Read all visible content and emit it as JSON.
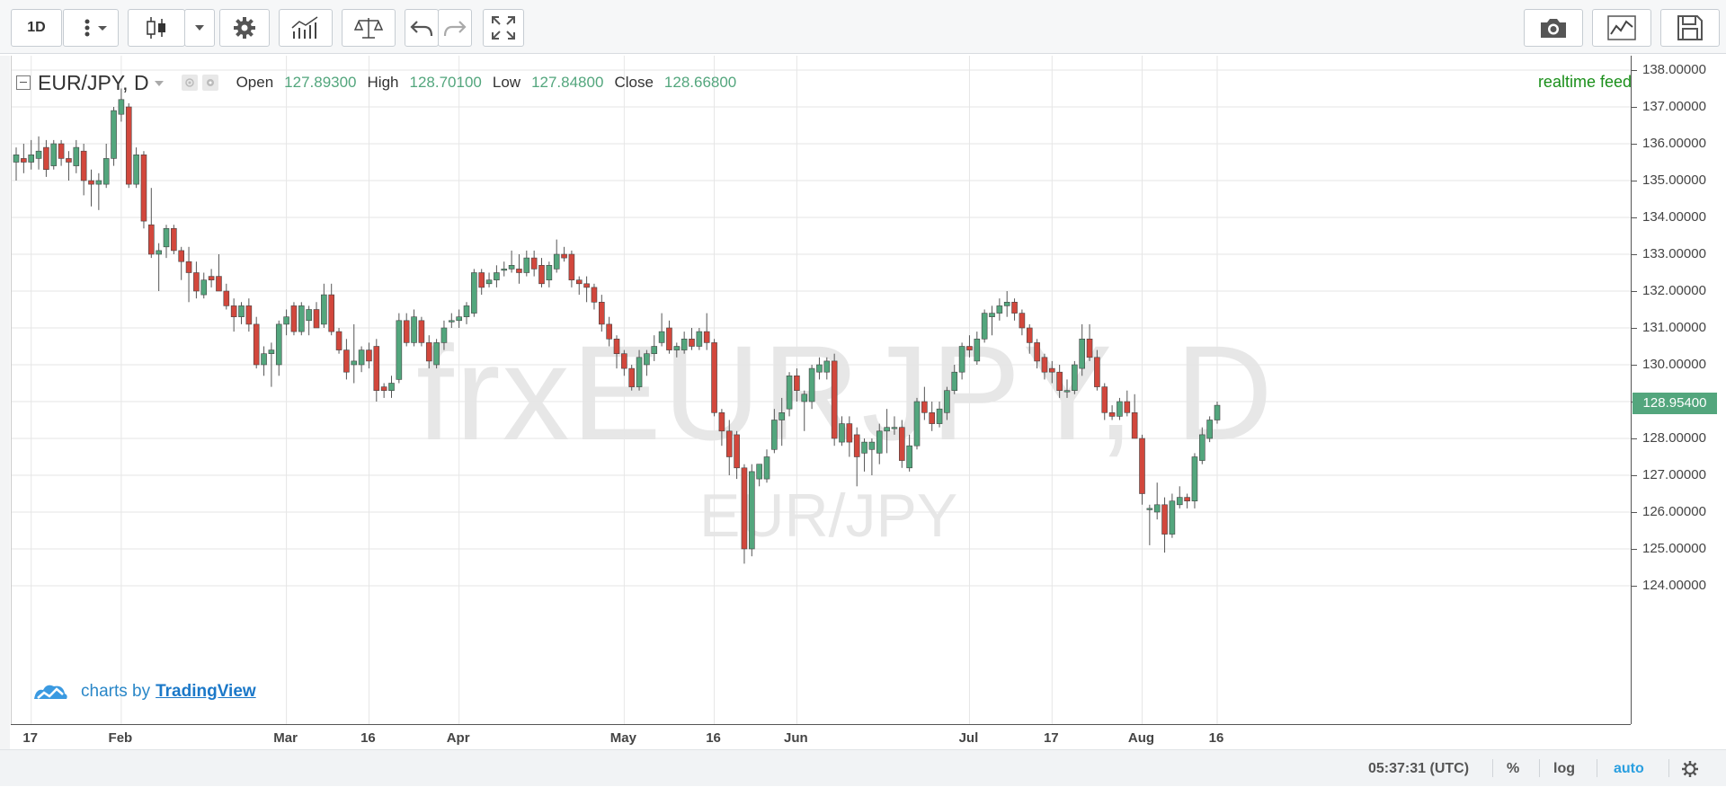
{
  "toolbar": {
    "interval": "1D",
    "icons": [
      "more-vertical-icon",
      "chevron-down-icon",
      "candlestick-icon",
      "chevron-down-icon",
      "gear-icon",
      "indicators-icon",
      "compare-scales-icon",
      "undo-icon",
      "redo-icon",
      "fullscreen-icon",
      "camera-icon",
      "chart-type-icon",
      "save-icon"
    ]
  },
  "legend": {
    "symbol": "EUR/JPY, D",
    "open_label": "Open",
    "open_value": "127.89300",
    "high_label": "High",
    "high_value": "128.70100",
    "low_label": "Low",
    "low_value": "127.84800",
    "close_label": "Close",
    "close_value": "128.66800"
  },
  "realtime_label": "realtime feed",
  "watermark": {
    "primary": "frxEURJPY, D",
    "secondary": "EUR/JPY"
  },
  "branding": {
    "prefix": "charts by",
    "link": "TradingView"
  },
  "status_bar": {
    "clock": "05:37:31 (UTC)",
    "percent": "%",
    "log": "log",
    "auto": "auto"
  },
  "colors": {
    "up": "#53a67d",
    "down": "#d2473c",
    "wick": "#555555",
    "grid": "#e6e6e6",
    "auto_active": "#2a9fe0"
  },
  "chart_data": {
    "type": "candlestick",
    "symbol": "EUR/JPY",
    "interval": "D",
    "y_range": [
      123.8,
      138.3
    ],
    "y_ticks": [
      "138.00000",
      "137.00000",
      "136.00000",
      "135.00000",
      "134.00000",
      "133.00000",
      "132.00000",
      "131.00000",
      "130.00000",
      "129.00000",
      "128.00000",
      "127.00000",
      "126.00000",
      "125.00000",
      "124.00000"
    ],
    "x_ticks": [
      "17",
      "Feb",
      "Mar",
      "16",
      "Apr",
      "May",
      "16",
      "Jun",
      "Jul",
      "17",
      "Aug",
      "16"
    ],
    "last_price": "128.95400",
    "candles": [
      {
        "o": 135.5,
        "h": 135.9,
        "l": 135.0,
        "c": 135.7
      },
      {
        "o": 135.6,
        "h": 136.0,
        "l": 135.2,
        "c": 135.5
      },
      {
        "o": 135.5,
        "h": 136.1,
        "l": 135.3,
        "c": 135.7
      },
      {
        "o": 135.6,
        "h": 136.2,
        "l": 135.3,
        "c": 135.8
      },
      {
        "o": 135.9,
        "h": 136.1,
        "l": 135.1,
        "c": 135.3
      },
      {
        "o": 135.4,
        "h": 136.1,
        "l": 135.3,
        "c": 136.0
      },
      {
        "o": 136.0,
        "h": 136.1,
        "l": 135.4,
        "c": 135.6
      },
      {
        "o": 135.6,
        "h": 135.8,
        "l": 135.0,
        "c": 135.5
      },
      {
        "o": 135.4,
        "h": 136.1,
        "l": 135.2,
        "c": 135.9
      },
      {
        "o": 135.8,
        "h": 136.0,
        "l": 134.6,
        "c": 135.0
      },
      {
        "o": 135.0,
        "h": 135.3,
        "l": 134.3,
        "c": 134.9
      },
      {
        "o": 134.9,
        "h": 135.2,
        "l": 134.2,
        "c": 135.0
      },
      {
        "o": 134.9,
        "h": 136.0,
        "l": 134.8,
        "c": 135.6
      },
      {
        "o": 135.6,
        "h": 137.0,
        "l": 135.4,
        "c": 136.9
      },
      {
        "o": 136.8,
        "h": 137.5,
        "l": 136.6,
        "c": 137.2
      },
      {
        "o": 137.0,
        "h": 137.1,
        "l": 134.8,
        "c": 134.9
      },
      {
        "o": 134.9,
        "h": 135.9,
        "l": 134.8,
        "c": 135.7
      },
      {
        "o": 135.7,
        "h": 135.8,
        "l": 133.7,
        "c": 133.9
      },
      {
        "o": 133.8,
        "h": 134.8,
        "l": 132.9,
        "c": 133.0
      },
      {
        "o": 133.0,
        "h": 133.3,
        "l": 132.0,
        "c": 133.1
      },
      {
        "o": 133.2,
        "h": 133.8,
        "l": 132.9,
        "c": 133.7
      },
      {
        "o": 133.7,
        "h": 133.8,
        "l": 133.0,
        "c": 133.1
      },
      {
        "o": 133.1,
        "h": 133.2,
        "l": 132.3,
        "c": 132.8
      },
      {
        "o": 132.8,
        "h": 133.2,
        "l": 131.7,
        "c": 132.5
      },
      {
        "o": 132.5,
        "h": 132.8,
        "l": 131.8,
        "c": 132.0
      },
      {
        "o": 131.9,
        "h": 132.5,
        "l": 131.8,
        "c": 132.3
      },
      {
        "o": 132.4,
        "h": 132.6,
        "l": 132.1,
        "c": 132.3
      },
      {
        "o": 132.4,
        "h": 133.0,
        "l": 132.0,
        "c": 132.0
      },
      {
        "o": 132.0,
        "h": 132.2,
        "l": 131.5,
        "c": 131.6
      },
      {
        "o": 131.6,
        "h": 131.8,
        "l": 130.9,
        "c": 131.3
      },
      {
        "o": 131.3,
        "h": 131.7,
        "l": 131.1,
        "c": 131.6
      },
      {
        "o": 131.6,
        "h": 131.8,
        "l": 130.9,
        "c": 131.1
      },
      {
        "o": 131.1,
        "h": 131.3,
        "l": 129.9,
        "c": 130.0
      },
      {
        "o": 130.0,
        "h": 130.5,
        "l": 129.7,
        "c": 130.3
      },
      {
        "o": 130.3,
        "h": 130.6,
        "l": 129.4,
        "c": 130.4
      },
      {
        "o": 130.0,
        "h": 131.2,
        "l": 129.7,
        "c": 131.1
      },
      {
        "o": 131.1,
        "h": 131.5,
        "l": 130.8,
        "c": 131.3
      },
      {
        "o": 131.6,
        "h": 131.7,
        "l": 130.8,
        "c": 130.9
      },
      {
        "o": 130.9,
        "h": 131.7,
        "l": 130.8,
        "c": 131.6
      },
      {
        "o": 131.2,
        "h": 131.6,
        "l": 130.8,
        "c": 131.5
      },
      {
        "o": 131.5,
        "h": 131.7,
        "l": 131.0,
        "c": 131.0
      },
      {
        "o": 131.1,
        "h": 132.2,
        "l": 131.0,
        "c": 131.9
      },
      {
        "o": 131.9,
        "h": 132.2,
        "l": 130.8,
        "c": 130.9
      },
      {
        "o": 130.9,
        "h": 131.0,
        "l": 130.3,
        "c": 130.4
      },
      {
        "o": 130.4,
        "h": 130.7,
        "l": 129.6,
        "c": 129.8
      },
      {
        "o": 130.0,
        "h": 131.1,
        "l": 129.5,
        "c": 130.1
      },
      {
        "o": 130.0,
        "h": 130.5,
        "l": 129.8,
        "c": 130.4
      },
      {
        "o": 130.4,
        "h": 130.6,
        "l": 129.9,
        "c": 130.1
      },
      {
        "o": 130.5,
        "h": 130.7,
        "l": 129.0,
        "c": 129.3
      },
      {
        "o": 129.4,
        "h": 129.5,
        "l": 129.1,
        "c": 129.3
      },
      {
        "o": 129.3,
        "h": 129.7,
        "l": 129.1,
        "c": 129.5
      },
      {
        "o": 129.6,
        "h": 131.4,
        "l": 129.5,
        "c": 131.2
      },
      {
        "o": 131.2,
        "h": 131.4,
        "l": 130.5,
        "c": 130.6
      },
      {
        "o": 130.6,
        "h": 131.5,
        "l": 130.5,
        "c": 131.3
      },
      {
        "o": 131.2,
        "h": 131.3,
        "l": 130.5,
        "c": 130.6
      },
      {
        "o": 130.6,
        "h": 130.8,
        "l": 129.9,
        "c": 130.1
      },
      {
        "o": 130.0,
        "h": 130.7,
        "l": 129.9,
        "c": 130.6
      },
      {
        "o": 130.6,
        "h": 131.2,
        "l": 130.4,
        "c": 131.0
      },
      {
        "o": 131.2,
        "h": 131.4,
        "l": 131.0,
        "c": 131.2
      },
      {
        "o": 131.2,
        "h": 131.5,
        "l": 131.0,
        "c": 131.3
      },
      {
        "o": 131.3,
        "h": 131.7,
        "l": 131.1,
        "c": 131.6
      },
      {
        "o": 131.4,
        "h": 132.6,
        "l": 131.3,
        "c": 132.5
      },
      {
        "o": 132.5,
        "h": 132.6,
        "l": 131.9,
        "c": 132.1
      },
      {
        "o": 132.2,
        "h": 132.5,
        "l": 132.1,
        "c": 132.3
      },
      {
        "o": 132.3,
        "h": 132.7,
        "l": 132.1,
        "c": 132.5
      },
      {
        "o": 132.6,
        "h": 132.8,
        "l": 132.4,
        "c": 132.6
      },
      {
        "o": 132.6,
        "h": 133.1,
        "l": 132.5,
        "c": 132.7
      },
      {
        "o": 132.6,
        "h": 133.0,
        "l": 132.2,
        "c": 132.5
      },
      {
        "o": 132.5,
        "h": 133.1,
        "l": 132.4,
        "c": 132.9
      },
      {
        "o": 132.9,
        "h": 133.1,
        "l": 132.4,
        "c": 132.6
      },
      {
        "o": 132.7,
        "h": 132.9,
        "l": 132.1,
        "c": 132.2
      },
      {
        "o": 132.3,
        "h": 132.8,
        "l": 132.1,
        "c": 132.7
      },
      {
        "o": 132.6,
        "h": 133.4,
        "l": 132.5,
        "c": 133.0
      },
      {
        "o": 133.0,
        "h": 133.2,
        "l": 132.8,
        "c": 132.9
      },
      {
        "o": 133.0,
        "h": 133.1,
        "l": 132.1,
        "c": 132.3
      },
      {
        "o": 132.3,
        "h": 132.4,
        "l": 131.9,
        "c": 132.2
      },
      {
        "o": 132.2,
        "h": 132.4,
        "l": 131.7,
        "c": 132.1
      },
      {
        "o": 132.1,
        "h": 132.2,
        "l": 131.5,
        "c": 131.7
      },
      {
        "o": 131.7,
        "h": 131.9,
        "l": 130.9,
        "c": 131.1
      },
      {
        "o": 131.1,
        "h": 131.3,
        "l": 130.5,
        "c": 130.7
      },
      {
        "o": 130.7,
        "h": 130.8,
        "l": 129.9,
        "c": 130.3
      },
      {
        "o": 130.3,
        "h": 130.4,
        "l": 129.7,
        "c": 129.9
      },
      {
        "o": 129.9,
        "h": 130.0,
        "l": 129.3,
        "c": 129.4
      },
      {
        "o": 129.4,
        "h": 130.4,
        "l": 129.3,
        "c": 130.2
      },
      {
        "o": 130.0,
        "h": 130.4,
        "l": 129.7,
        "c": 130.3
      },
      {
        "o": 130.3,
        "h": 130.8,
        "l": 130.1,
        "c": 130.5
      },
      {
        "o": 130.6,
        "h": 131.4,
        "l": 130.5,
        "c": 130.9
      },
      {
        "o": 131.0,
        "h": 131.2,
        "l": 130.3,
        "c": 130.4
      },
      {
        "o": 130.4,
        "h": 130.6,
        "l": 130.2,
        "c": 130.5
      },
      {
        "o": 130.4,
        "h": 130.9,
        "l": 130.3,
        "c": 130.7
      },
      {
        "o": 130.7,
        "h": 131.0,
        "l": 130.4,
        "c": 130.5
      },
      {
        "o": 130.5,
        "h": 131.0,
        "l": 130.4,
        "c": 130.9
      },
      {
        "o": 130.9,
        "h": 131.4,
        "l": 130.4,
        "c": 130.6
      },
      {
        "o": 130.6,
        "h": 130.7,
        "l": 128.6,
        "c": 128.7
      },
      {
        "o": 128.7,
        "h": 128.8,
        "l": 127.8,
        "c": 128.2
      },
      {
        "o": 128.2,
        "h": 128.5,
        "l": 127.0,
        "c": 127.5
      },
      {
        "o": 128.1,
        "h": 128.2,
        "l": 126.9,
        "c": 127.2
      },
      {
        "o": 127.2,
        "h": 127.3,
        "l": 124.6,
        "c": 125.0
      },
      {
        "o": 125.0,
        "h": 127.3,
        "l": 124.8,
        "c": 127.1
      },
      {
        "o": 126.9,
        "h": 127.3,
        "l": 126.7,
        "c": 127.3
      },
      {
        "o": 126.9,
        "h": 127.7,
        "l": 126.8,
        "c": 127.5
      },
      {
        "o": 127.7,
        "h": 128.8,
        "l": 127.6,
        "c": 128.5
      },
      {
        "o": 128.5,
        "h": 129.1,
        "l": 127.8,
        "c": 128.7
      },
      {
        "o": 128.8,
        "h": 129.8,
        "l": 128.6,
        "c": 129.7
      },
      {
        "o": 129.7,
        "h": 129.9,
        "l": 129.0,
        "c": 129.3
      },
      {
        "o": 129.0,
        "h": 129.3,
        "l": 128.2,
        "c": 129.2
      },
      {
        "o": 129.0,
        "h": 130.0,
        "l": 128.8,
        "c": 129.9
      },
      {
        "o": 129.8,
        "h": 130.2,
        "l": 129.6,
        "c": 130.0
      },
      {
        "o": 129.8,
        "h": 130.2,
        "l": 129.6,
        "c": 130.1
      },
      {
        "o": 130.1,
        "h": 130.3,
        "l": 127.8,
        "c": 128.0
      },
      {
        "o": 127.9,
        "h": 128.6,
        "l": 127.8,
        "c": 128.4
      },
      {
        "o": 128.4,
        "h": 128.6,
        "l": 127.5,
        "c": 127.9
      },
      {
        "o": 128.1,
        "h": 128.3,
        "l": 126.7,
        "c": 127.5
      },
      {
        "o": 127.6,
        "h": 128.0,
        "l": 127.1,
        "c": 127.9
      },
      {
        "o": 127.7,
        "h": 128.0,
        "l": 127.0,
        "c": 127.9
      },
      {
        "o": 127.6,
        "h": 128.4,
        "l": 127.3,
        "c": 128.2
      },
      {
        "o": 128.2,
        "h": 128.8,
        "l": 127.6,
        "c": 128.3
      },
      {
        "o": 128.3,
        "h": 128.6,
        "l": 128.1,
        "c": 128.3
      },
      {
        "o": 128.3,
        "h": 128.5,
        "l": 127.2,
        "c": 127.4
      },
      {
        "o": 127.2,
        "h": 128.1,
        "l": 127.1,
        "c": 127.8
      },
      {
        "o": 127.8,
        "h": 129.1,
        "l": 127.7,
        "c": 129.0
      },
      {
        "o": 129.0,
        "h": 129.4,
        "l": 128.5,
        "c": 128.7
      },
      {
        "o": 128.7,
        "h": 129.0,
        "l": 128.2,
        "c": 128.4
      },
      {
        "o": 128.4,
        "h": 129.0,
        "l": 128.3,
        "c": 128.8
      },
      {
        "o": 128.7,
        "h": 129.4,
        "l": 128.5,
        "c": 129.3
      },
      {
        "o": 129.3,
        "h": 130.0,
        "l": 129.2,
        "c": 129.8
      },
      {
        "o": 129.8,
        "h": 130.6,
        "l": 129.6,
        "c": 130.5
      },
      {
        "o": 130.5,
        "h": 130.8,
        "l": 130.2,
        "c": 130.4
      },
      {
        "o": 130.1,
        "h": 130.9,
        "l": 130.0,
        "c": 130.7
      },
      {
        "o": 130.7,
        "h": 131.5,
        "l": 130.6,
        "c": 131.4
      },
      {
        "o": 131.3,
        "h": 131.6,
        "l": 130.8,
        "c": 131.4
      },
      {
        "o": 131.4,
        "h": 131.8,
        "l": 131.2,
        "c": 131.6
      },
      {
        "o": 131.6,
        "h": 132.0,
        "l": 131.3,
        "c": 131.7
      },
      {
        "o": 131.7,
        "h": 131.8,
        "l": 131.2,
        "c": 131.4
      },
      {
        "o": 131.4,
        "h": 131.5,
        "l": 130.8,
        "c": 131.0
      },
      {
        "o": 131.0,
        "h": 131.1,
        "l": 130.3,
        "c": 130.6
      },
      {
        "o": 130.6,
        "h": 130.7,
        "l": 129.9,
        "c": 130.1
      },
      {
        "o": 130.2,
        "h": 130.3,
        "l": 129.6,
        "c": 129.8
      },
      {
        "o": 129.9,
        "h": 130.1,
        "l": 129.5,
        "c": 129.8
      },
      {
        "o": 129.8,
        "h": 130.0,
        "l": 129.1,
        "c": 129.3
      },
      {
        "o": 129.3,
        "h": 129.6,
        "l": 129.1,
        "c": 129.3
      },
      {
        "o": 129.3,
        "h": 130.1,
        "l": 129.2,
        "c": 130.0
      },
      {
        "o": 129.9,
        "h": 131.1,
        "l": 129.7,
        "c": 130.7
      },
      {
        "o": 130.7,
        "h": 131.1,
        "l": 130.1,
        "c": 130.2
      },
      {
        "o": 130.2,
        "h": 130.4,
        "l": 129.3,
        "c": 129.4
      },
      {
        "o": 129.4,
        "h": 129.5,
        "l": 128.5,
        "c": 128.7
      },
      {
        "o": 128.7,
        "h": 128.9,
        "l": 128.5,
        "c": 128.6
      },
      {
        "o": 128.6,
        "h": 129.1,
        "l": 128.5,
        "c": 129.0
      },
      {
        "o": 129.0,
        "h": 129.3,
        "l": 128.6,
        "c": 128.7
      },
      {
        "o": 128.7,
        "h": 129.2,
        "l": 128.0,
        "c": 128.0
      },
      {
        "o": 128.0,
        "h": 128.1,
        "l": 126.2,
        "c": 126.5
      },
      {
        "o": 126.1,
        "h": 126.2,
        "l": 125.1,
        "c": 126.1
      },
      {
        "o": 126.0,
        "h": 126.8,
        "l": 125.8,
        "c": 126.2
      },
      {
        "o": 126.2,
        "h": 126.4,
        "l": 124.9,
        "c": 125.4
      },
      {
        "o": 125.4,
        "h": 126.5,
        "l": 125.3,
        "c": 126.3
      },
      {
        "o": 126.2,
        "h": 126.7,
        "l": 126.1,
        "c": 126.4
      },
      {
        "o": 126.4,
        "h": 126.5,
        "l": 126.1,
        "c": 126.3
      },
      {
        "o": 126.3,
        "h": 127.6,
        "l": 126.1,
        "c": 127.5
      },
      {
        "o": 127.4,
        "h": 128.3,
        "l": 127.3,
        "c": 128.1
      },
      {
        "o": 128.0,
        "h": 128.6,
        "l": 127.9,
        "c": 128.5
      },
      {
        "o": 128.5,
        "h": 129.0,
        "l": 128.4,
        "c": 128.9
      }
    ]
  }
}
